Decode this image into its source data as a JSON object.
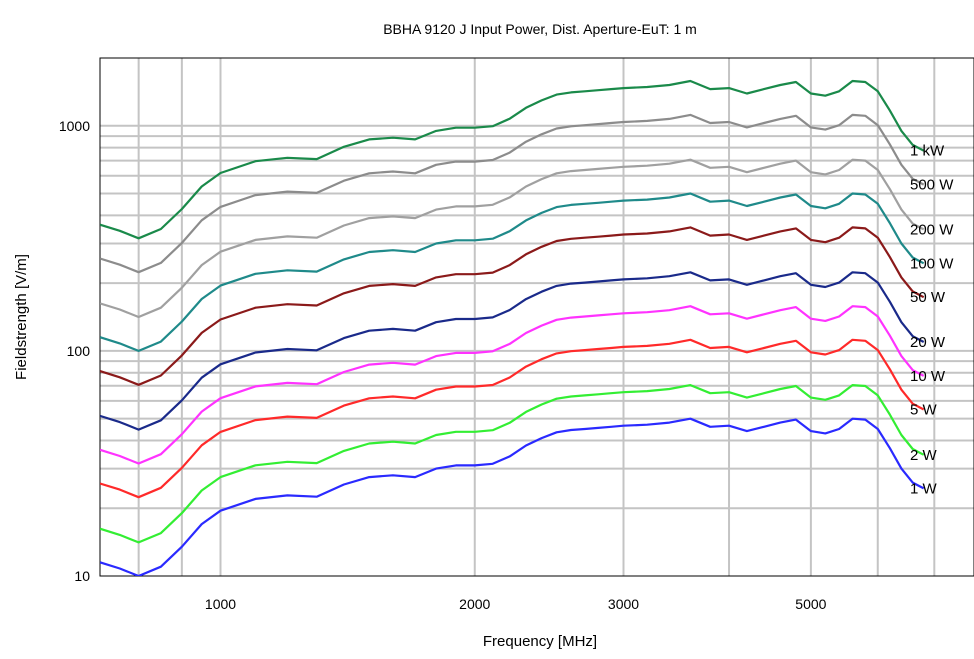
{
  "chart_data": {
    "type": "line",
    "title": "BBHA 9120 J Input Power, Dist. Aperture-EuT: 1 m",
    "xlabel": "Frequency [MHz]",
    "ylabel": "Fieldstrength [V/m]",
    "xscale": "log",
    "yscale": "log",
    "xlim": [
      720,
      7800
    ],
    "ylim": [
      10,
      2000
    ],
    "grid": true,
    "legend": "labels at right end of each line",
    "x_ticks": [
      {
        "value": 1000,
        "label": "1000"
      },
      {
        "value": 2000,
        "label": "2000"
      },
      {
        "value": 3000,
        "label": "3000"
      },
      {
        "value": 5000,
        "label": "5000"
      }
    ],
    "y_ticks": [
      {
        "value": 10,
        "label": "10"
      },
      {
        "value": 100,
        "label": "100"
      },
      {
        "value": 1000,
        "label": "1000"
      }
    ],
    "x": [
      720,
      760,
      800,
      850,
      900,
      950,
      1000,
      1100,
      1200,
      1300,
      1400,
      1500,
      1600,
      1700,
      1800,
      1900,
      2000,
      2100,
      2200,
      2300,
      2400,
      2500,
      2600,
      2700,
      2800,
      2900,
      3000,
      3200,
      3400,
      3600,
      3800,
      4000,
      4200,
      4400,
      4600,
      4800,
      5000,
      5200,
      5400,
      5600,
      5800,
      6000,
      6200,
      6400,
      6600,
      6800
    ],
    "base_1W": [
      11.5,
      10.8,
      10.0,
      11.0,
      13.5,
      17.0,
      19.5,
      22.0,
      22.8,
      22.5,
      25.5,
      27.5,
      28.0,
      27.5,
      30.0,
      31.0,
      31.0,
      31.5,
      34.0,
      38.0,
      41.0,
      43.5,
      44.5,
      45.0,
      45.5,
      46.0,
      46.5,
      47.0,
      48.0,
      50.0,
      46.0,
      46.5,
      44.0,
      46.0,
      48.0,
      49.5,
      44.0,
      43.0,
      45.0,
      50.0,
      49.5,
      45.0,
      37.0,
      30.0,
      26.0,
      24.5
    ],
    "series": [
      {
        "name": "1 kW",
        "label": "1 kW",
        "color": "#1a8a4a",
        "factor": 31.62
      },
      {
        "name": "500 W",
        "label": "500 W",
        "color": "#8c8c8c",
        "factor": 22.36
      },
      {
        "name": "200 W",
        "label": "200 W",
        "color": "#a0a0a0",
        "factor": 14.14
      },
      {
        "name": "100 W",
        "label": "100 W",
        "color": "#1f8a8a",
        "factor": 10.0
      },
      {
        "name": "50 W",
        "label": "50 W",
        "color": "#8b1a1a",
        "factor": 7.07
      },
      {
        "name": "20 W",
        "label": "20 W",
        "color": "#1a2a8a",
        "factor": 4.47
      },
      {
        "name": "10 W",
        "label": "10 W",
        "color": "#ff33ff",
        "factor": 3.16
      },
      {
        "name": "5 W",
        "label": "5 W",
        "color": "#ff2a2a",
        "factor": 2.24
      },
      {
        "name": "2 W",
        "label": "2 W",
        "color": "#33ee33",
        "factor": 1.41
      },
      {
        "name": "1 W",
        "label": "1 W",
        "color": "#2a2aff",
        "factor": 1.0
      }
    ]
  }
}
